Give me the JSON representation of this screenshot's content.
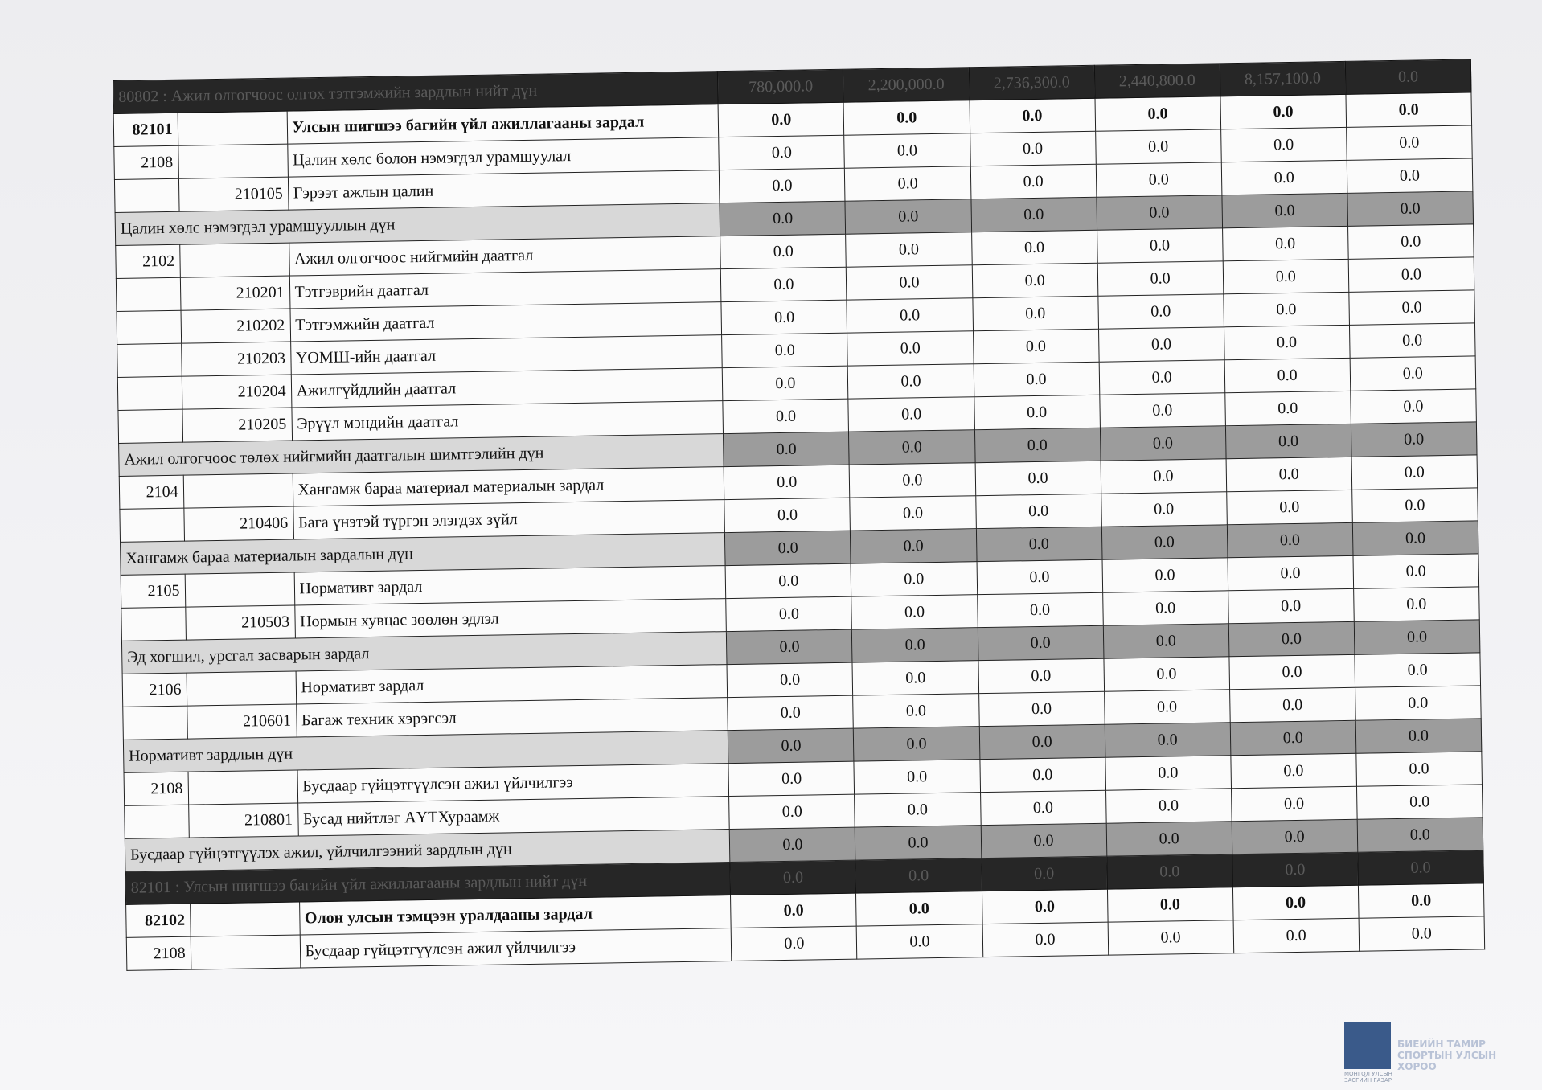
{
  "table": {
    "rows": [
      {
        "kind": "total",
        "label": "80802 : Ажил олгогчоос олгох тэтгэмжийн зардлын нийт дүн",
        "values": [
          "780,000.0",
          "2,200,000.0",
          "2,736,300.0",
          "2,440,800.0",
          "8,157,100.0",
          "0.0"
        ]
      },
      {
        "kind": "group",
        "code": "82101",
        "label": "Улсын шигшээ багийн үйл ажиллагааны зардал",
        "values": [
          "0.0",
          "0.0",
          "0.0",
          "0.0",
          "0.0",
          "0.0"
        ]
      },
      {
        "kind": "item",
        "code": "2108",
        "label": "Цалин хөлс болон нэмэгдэл урамшуулал",
        "values": [
          "0.0",
          "0.0",
          "0.0",
          "0.0",
          "0.0",
          "0.0"
        ]
      },
      {
        "kind": "item",
        "sub": "210105",
        "label": "Гэрээт ажлын цалин",
        "values": [
          "0.0",
          "0.0",
          "0.0",
          "0.0",
          "0.0",
          "0.0"
        ]
      },
      {
        "kind": "sum",
        "label": "Цалин хөлс нэмэгдэл урамшууллын дүн",
        "values": [
          "0.0",
          "0.0",
          "0.0",
          "0.0",
          "0.0",
          "0.0"
        ]
      },
      {
        "kind": "item",
        "code": "2102",
        "label": "Ажил олгогчоос нийгмийн даатгал",
        "values": [
          "0.0",
          "0.0",
          "0.0",
          "0.0",
          "0.0",
          "0.0"
        ]
      },
      {
        "kind": "item",
        "sub": "210201",
        "label": "Тэтгэврийн даатгал",
        "values": [
          "0.0",
          "0.0",
          "0.0",
          "0.0",
          "0.0",
          "0.0"
        ]
      },
      {
        "kind": "item",
        "sub": "210202",
        "label": "Тэтгэмжийн даатгал",
        "values": [
          "0.0",
          "0.0",
          "0.0",
          "0.0",
          "0.0",
          "0.0"
        ]
      },
      {
        "kind": "item",
        "sub": "210203",
        "label": "ҮОМШ-ийн даатгал",
        "values": [
          "0.0",
          "0.0",
          "0.0",
          "0.0",
          "0.0",
          "0.0"
        ]
      },
      {
        "kind": "item",
        "sub": "210204",
        "label": "Ажилгүйдлийн даатгал",
        "values": [
          "0.0",
          "0.0",
          "0.0",
          "0.0",
          "0.0",
          "0.0"
        ]
      },
      {
        "kind": "item",
        "sub": "210205",
        "label": "Эрүүл мэндийн даатгал",
        "values": [
          "0.0",
          "0.0",
          "0.0",
          "0.0",
          "0.0",
          "0.0"
        ]
      },
      {
        "kind": "sum",
        "label": "Ажил олгогчоос төлөх нийгмийн даатгалын шимтгэлийн дүн",
        "values": [
          "0.0",
          "0.0",
          "0.0",
          "0.0",
          "0.0",
          "0.0"
        ]
      },
      {
        "kind": "item",
        "code": "2104",
        "label": "Хангамж бараа материал материалын зардал",
        "values": [
          "0.0",
          "0.0",
          "0.0",
          "0.0",
          "0.0",
          "0.0"
        ]
      },
      {
        "kind": "item",
        "sub": "210406",
        "label": "Бага үнэтэй түргэн элэгдэх зүйл",
        "values": [
          "0.0",
          "0.0",
          "0.0",
          "0.0",
          "0.0",
          "0.0"
        ]
      },
      {
        "kind": "sum",
        "label": "Хангамж бараа материалын зардалын дүн",
        "values": [
          "0.0",
          "0.0",
          "0.0",
          "0.0",
          "0.0",
          "0.0"
        ]
      },
      {
        "kind": "item",
        "code": "2105",
        "label": "Нормативт зардал",
        "values": [
          "0.0",
          "0.0",
          "0.0",
          "0.0",
          "0.0",
          "0.0"
        ]
      },
      {
        "kind": "item",
        "sub": "210503",
        "label": "Нормын хувцас зөөлөн эдлэл",
        "values": [
          "0.0",
          "0.0",
          "0.0",
          "0.0",
          "0.0",
          "0.0"
        ]
      },
      {
        "kind": "sum",
        "label": "Эд хогшил, урсгал засварын зардал",
        "values": [
          "0.0",
          "0.0",
          "0.0",
          "0.0",
          "0.0",
          "0.0"
        ]
      },
      {
        "kind": "item",
        "code": "2106",
        "label": "Нормативт зардал",
        "values": [
          "0.0",
          "0.0",
          "0.0",
          "0.0",
          "0.0",
          "0.0"
        ]
      },
      {
        "kind": "item",
        "sub": "210601",
        "label": "Багаж техник хэрэгсэл",
        "values": [
          "0.0",
          "0.0",
          "0.0",
          "0.0",
          "0.0",
          "0.0"
        ]
      },
      {
        "kind": "sum",
        "label": "Нормативт зардлын дүн",
        "values": [
          "0.0",
          "0.0",
          "0.0",
          "0.0",
          "0.0",
          "0.0"
        ]
      },
      {
        "kind": "item",
        "code": "2108",
        "label": "Бусдаар гүйцэтгүүлсэн ажил үйлчилгээ",
        "values": [
          "0.0",
          "0.0",
          "0.0",
          "0.0",
          "0.0",
          "0.0"
        ]
      },
      {
        "kind": "item",
        "sub": "210801",
        "label": "Бусад нийтлэг АҮТХураамж",
        "values": [
          "0.0",
          "0.0",
          "0.0",
          "0.0",
          "0.0",
          "0.0"
        ]
      },
      {
        "kind": "sum",
        "label": "Бусдаар гүйцэтгүүлэх ажил, үйлчилгээний зардлын  дүн",
        "values": [
          "0.0",
          "0.0",
          "0.0",
          "0.0",
          "0.0",
          "0.0"
        ]
      },
      {
        "kind": "total",
        "label": "82101 : Улсын шигшээ багийн үйл ажиллагааны зардлын нийт дүн",
        "values": [
          "0.0",
          "0.0",
          "0.0",
          "0.0",
          "0.0",
          "0.0"
        ]
      },
      {
        "kind": "group",
        "code": "82102",
        "label": "Олон улсын тэмцээн уралдааны зардал",
        "values": [
          "0.0",
          "0.0",
          "0.0",
          "0.0",
          "0.0",
          "0.0"
        ]
      },
      {
        "kind": "item",
        "code": "2108",
        "label": "Бусдаар гүйцэтгүүлсэн ажил үйлчилгээ",
        "values": [
          "0.0",
          "0.0",
          "0.0",
          "0.0",
          "0.0",
          "0.0"
        ]
      }
    ]
  },
  "logo": {
    "top": "МОНГОЛ УЛСЫН ЗАСГИЙН ГАЗАР",
    "org": "БИЕИЙН ТАМИР СПОРТЫН УЛСЫН ХОРОО"
  }
}
